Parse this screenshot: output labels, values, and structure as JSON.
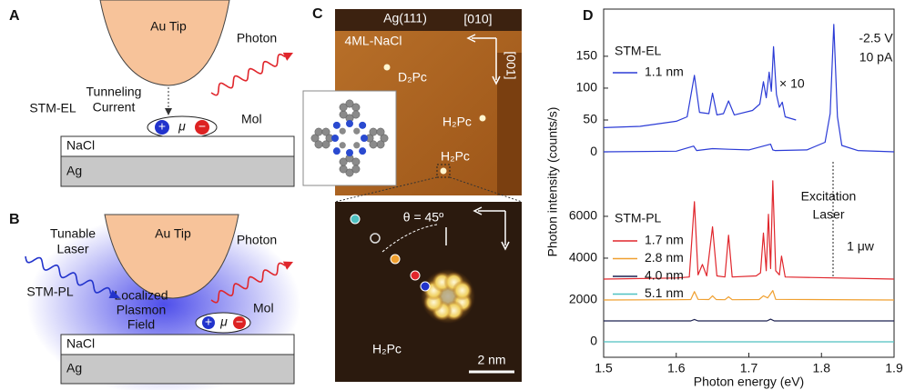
{
  "panel_labels": [
    "A",
    "B",
    "C",
    "D"
  ],
  "panel_a": {
    "tip": "Au Tip",
    "photon": "Photon",
    "mode": "STM-EL",
    "current": [
      "Tunneling",
      "Current"
    ],
    "mol": "Mol",
    "plus": "+",
    "mu": "μ",
    "minus": "−",
    "substrate": "NaCl",
    "metal": "Ag"
  },
  "panel_b": {
    "tip": "Au Tip",
    "laser": [
      "Tunable",
      "Laser"
    ],
    "photon": "Photon",
    "mode": "STM-PL",
    "field": [
      "Localized",
      "Plasmon",
      "Field"
    ],
    "mol": "Mol",
    "plus": "+",
    "mu": "μ",
    "minus": "−",
    "substrate": "NaCl",
    "metal": "Ag"
  },
  "panel_c": {
    "surface": "Ag(111)",
    "film": "4ML-NaCl",
    "dir1": "[010]",
    "dir2": "[001]",
    "mol1": "D₂Pc",
    "mol2": "H₂Pc",
    "mol3": "H₂Pc",
    "angle": "θ = 45º",
    "mol4": "H₂Pc",
    "scale": "2 nm"
  },
  "chart_data": [
    {
      "type": "line",
      "title": "STM-EL",
      "xlim": [
        1.5,
        1.9
      ],
      "ylim": [
        -47,
        224
      ],
      "yticks": [
        0,
        50,
        100,
        150
      ],
      "annotations": [
        "× 10",
        "-2.5 V",
        "10 pA"
      ],
      "series": [
        {
          "name": "1.1 nm",
          "color": "#2b3bd6",
          "x": [
            1.5,
            1.55,
            1.6,
            1.615,
            1.625,
            1.632,
            1.645,
            1.65,
            1.656,
            1.665,
            1.672,
            1.68,
            1.705,
            1.715,
            1.72,
            1.724,
            1.728,
            1.731,
            1.734,
            1.738,
            1.742,
            1.746,
            1.75,
            1.765
          ],
          "values": [
            38,
            40,
            48,
            55,
            120,
            62,
            60,
            92,
            58,
            60,
            80,
            58,
            65,
            75,
            110,
            85,
            125,
            95,
            165,
            90,
            70,
            78,
            55,
            50
          ]
        },
        {
          "color": "#2b3bd6",
          "x": [
            1.5,
            1.6,
            1.624,
            1.628,
            1.65,
            1.672,
            1.7,
            1.73,
            1.733,
            1.736,
            1.78,
            1.805,
            1.812,
            1.817,
            1.822,
            1.828,
            1.85,
            1.9
          ],
          "values": [
            0,
            1,
            9,
            2,
            5,
            4,
            3,
            12,
            3,
            2,
            3,
            15,
            60,
            200,
            55,
            10,
            2,
            0
          ]
        }
      ]
    },
    {
      "type": "line",
      "title": "STM-PL",
      "xlabel": "Photon energy (eV)",
      "ylabel": "Photon intensity (counts/s)",
      "xlim": [
        1.5,
        1.9
      ],
      "xticks": [
        1.5,
        1.6,
        1.7,
        1.8,
        1.9
      ],
      "ylim": [
        -740,
        7650
      ],
      "yticks": [
        0,
        2000,
        4000,
        6000
      ],
      "annotations": [
        "Excitation",
        "Laser",
        "1 μw"
      ],
      "series": [
        {
          "name": "1.7 nm",
          "color": "#e0262c",
          "x": [
            1.5,
            1.6,
            1.618,
            1.625,
            1.63,
            1.636,
            1.642,
            1.65,
            1.656,
            1.667,
            1.672,
            1.677,
            1.71,
            1.716,
            1.72,
            1.724,
            1.727,
            1.73,
            1.733,
            1.737,
            1.742,
            1.745,
            1.75,
            1.9
          ],
          "values": [
            3000,
            3050,
            3100,
            6700,
            3200,
            3700,
            3150,
            5500,
            3150,
            3100,
            5100,
            3100,
            3150,
            3300,
            5200,
            3400,
            6100,
            3500,
            7700,
            3400,
            3200,
            4100,
            3100,
            3000
          ]
        },
        {
          "name": "2.8 nm",
          "color": "#f0a030",
          "x": [
            1.5,
            1.6,
            1.62,
            1.625,
            1.63,
            1.645,
            1.65,
            1.655,
            1.667,
            1.672,
            1.677,
            1.714,
            1.72,
            1.726,
            1.73,
            1.733,
            1.737,
            1.9
          ],
          "values": [
            2000,
            2010,
            2020,
            2400,
            2030,
            2020,
            2200,
            2020,
            2010,
            2150,
            2010,
            2020,
            2200,
            2100,
            2300,
            2450,
            2030,
            2000
          ]
        },
        {
          "name": "4.0 nm",
          "color": "#1c2150",
          "x": [
            1.5,
            1.62,
            1.625,
            1.63,
            1.725,
            1.73,
            1.735,
            1.9
          ],
          "values": [
            1000,
            1000,
            1070,
            1000,
            1000,
            1080,
            1000,
            1000
          ]
        },
        {
          "name": "5.1 nm",
          "color": "#4fc1c1",
          "x": [
            1.5,
            1.9
          ],
          "values": [
            0,
            0
          ]
        }
      ]
    }
  ]
}
